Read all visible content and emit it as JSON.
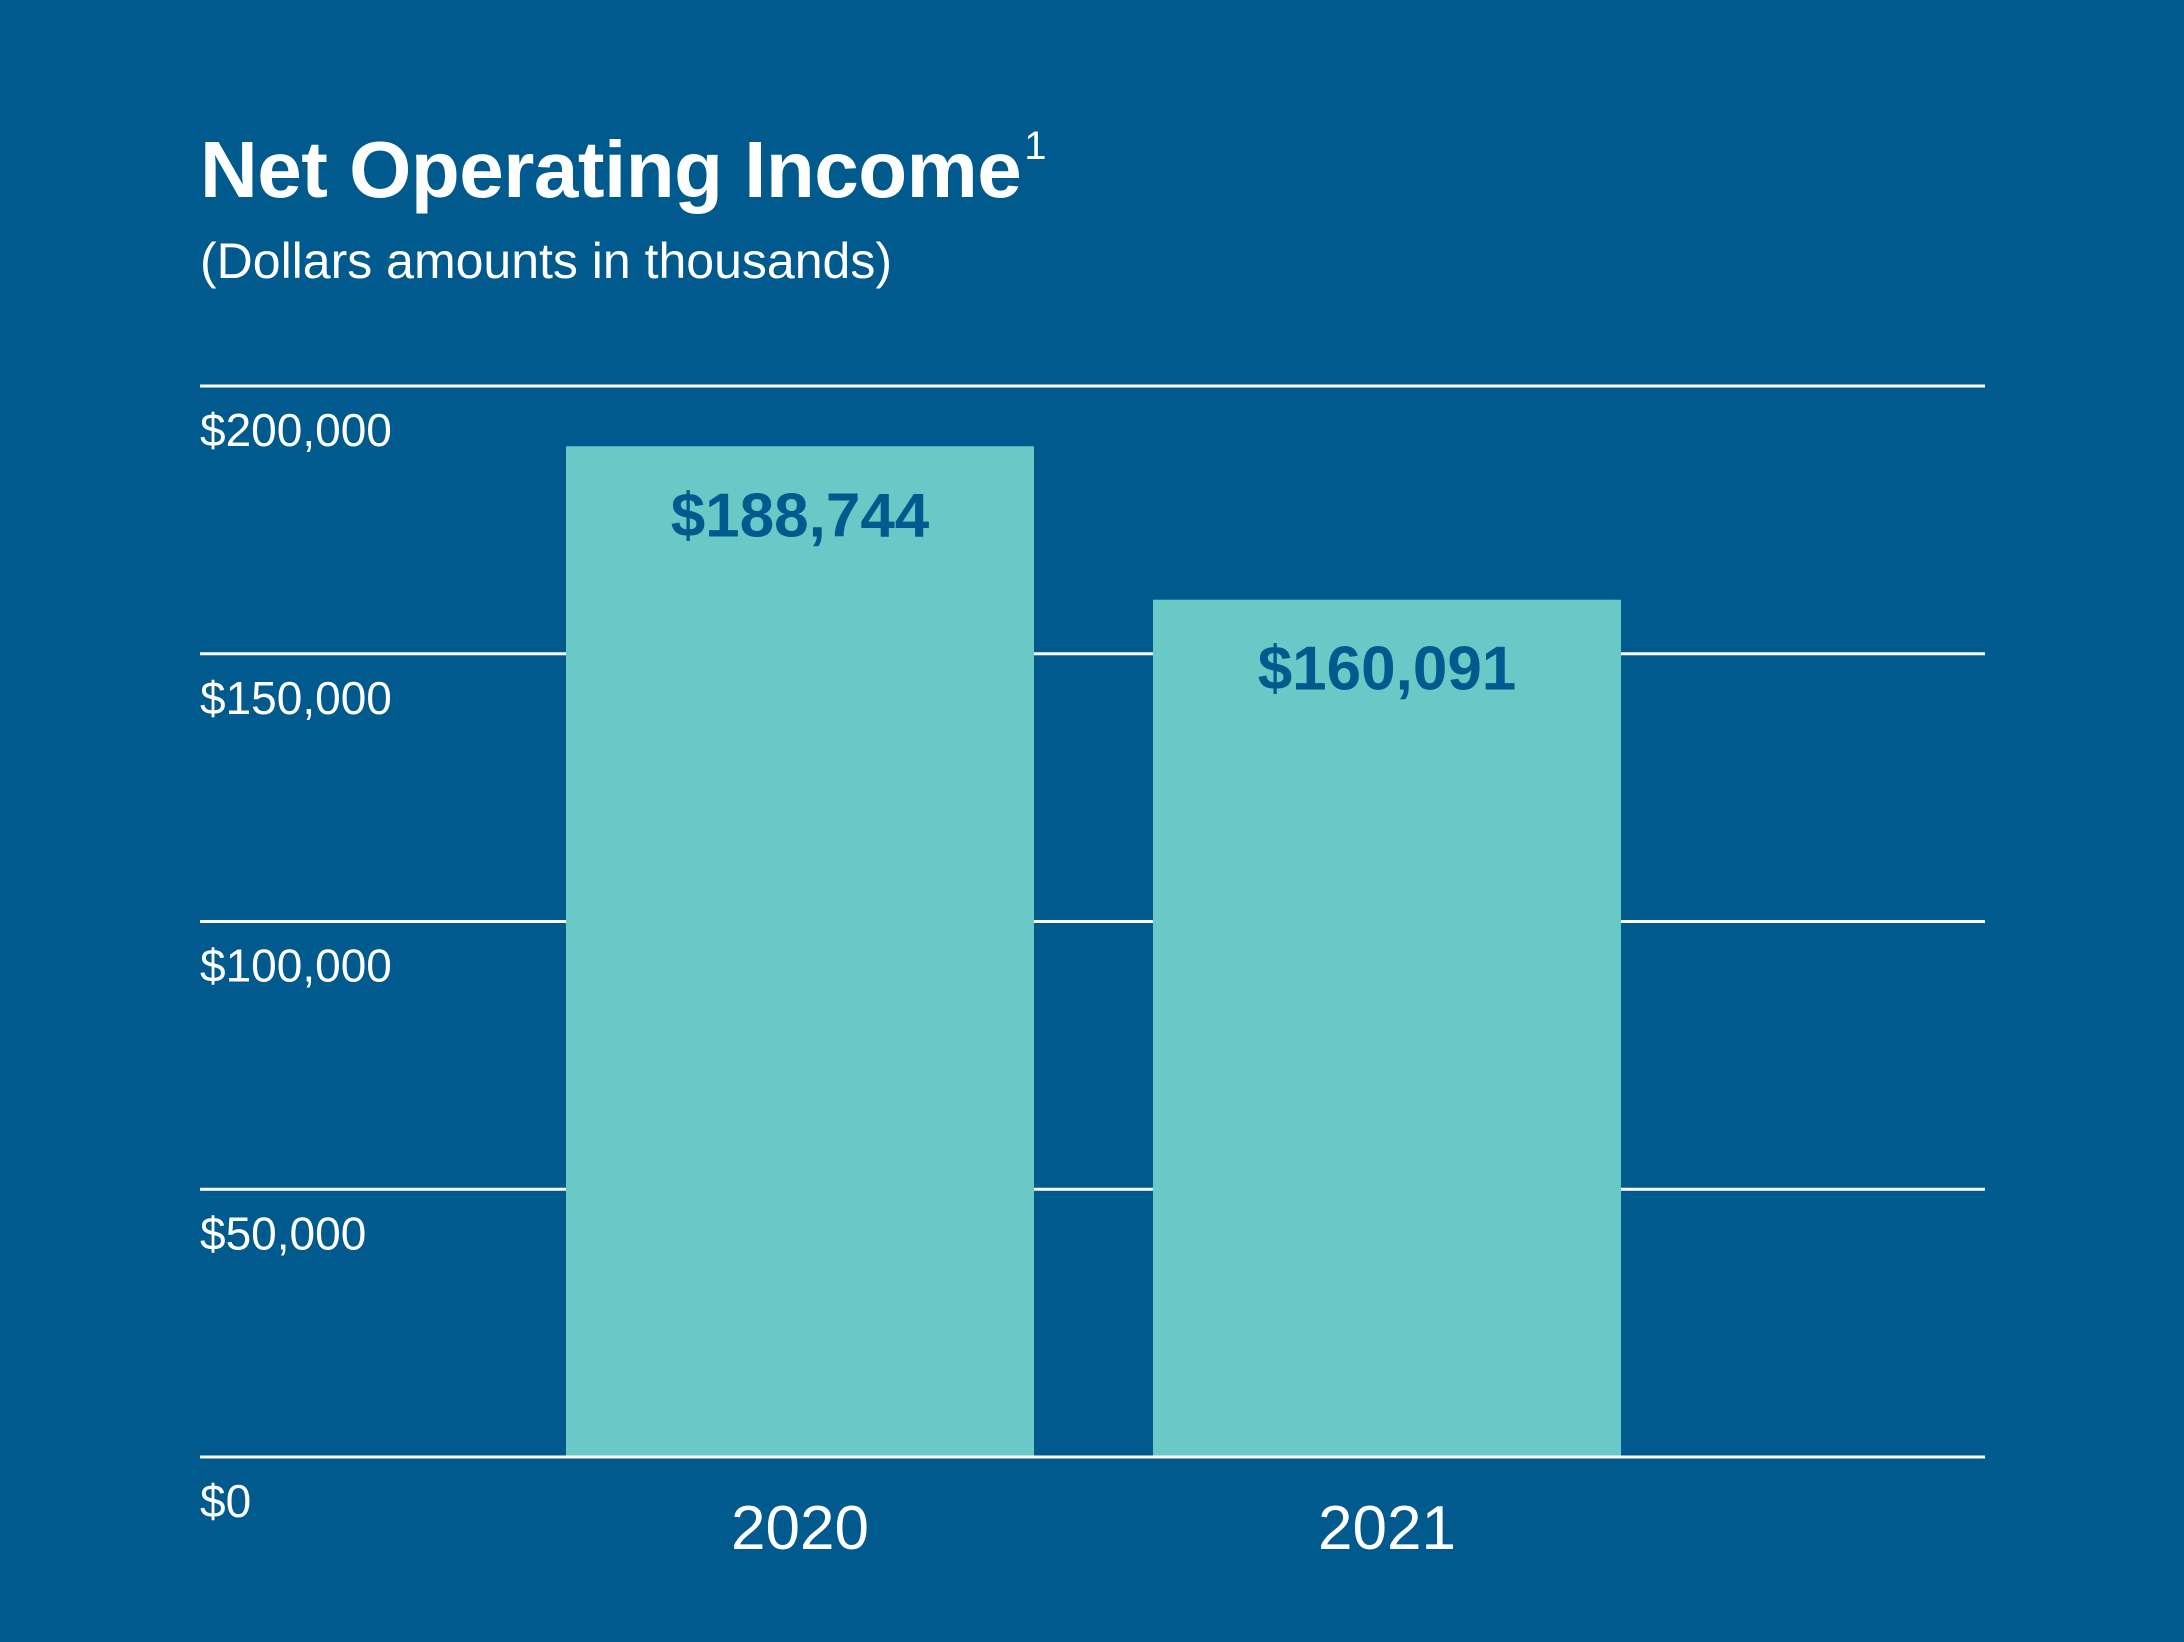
{
  "chart_data": {
    "type": "bar",
    "title": "Net Operating Income",
    "title_footnote": "1",
    "subtitle": "(Dollars amounts in thousands)",
    "categories": [
      "2020",
      "2021"
    ],
    "values": [
      188744,
      160091
    ],
    "data_labels": [
      "$188,744",
      "$160,091"
    ],
    "y_ticks": [
      0,
      50000,
      100000,
      150000,
      200000
    ],
    "y_tick_labels": [
      "$0",
      "$50,000",
      "$100,000",
      "$150,000",
      "$200,000"
    ],
    "ylim": [
      0,
      200000
    ],
    "xlabel": "",
    "ylabel": "",
    "grid": true,
    "legend": "none"
  },
  "colors": {
    "background": "#005a8e",
    "bar": "#6ac8c7",
    "data_label": "#005a8e",
    "gridline": "#ffffff",
    "text": "#ffffff"
  }
}
